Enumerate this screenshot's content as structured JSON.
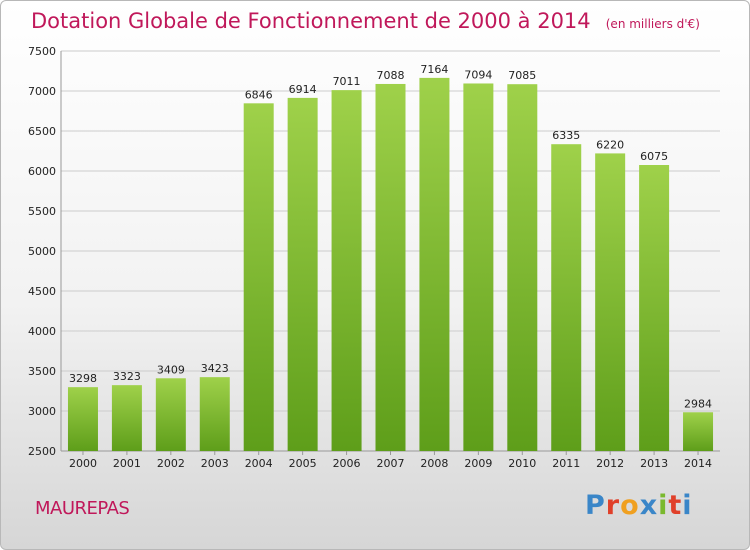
{
  "header": {
    "title": "Dotation Globale de Fonctionnement de 2000 à 2014",
    "unit": "(en milliers d'€)"
  },
  "footer": {
    "commune": "MAUREPAS",
    "brand": "Proxiti",
    "brand_letters": [
      "P",
      "r",
      "o",
      "x",
      "i",
      "t",
      "i"
    ],
    "brand_colors": [
      "#3a86c8",
      "#e0402a",
      "#f0a020",
      "#3a86c8",
      "#7ab92e",
      "#e0402a",
      "#3a86c8"
    ]
  },
  "colors": {
    "bar_light": "#9fd14a",
    "bar_dark": "#5e9e1a",
    "grid": "#cccccc",
    "title": "#c0185a"
  },
  "chart_data": {
    "type": "bar",
    "title": "Dotation Globale de Fonctionnement de 2000 à 2014",
    "subtitle": "(en milliers d'€)",
    "categories": [
      "2000",
      "2001",
      "2002",
      "2003",
      "2004",
      "2005",
      "2006",
      "2007",
      "2008",
      "2009",
      "2010",
      "2011",
      "2012",
      "2013",
      "2014"
    ],
    "values": [
      3298,
      3323,
      3409,
      3423,
      6846,
      6914,
      7011,
      7088,
      7164,
      7094,
      7085,
      6335,
      6220,
      6075,
      2984
    ],
    "ylim": [
      2500,
      7500
    ],
    "yticks": [
      2500,
      3000,
      3500,
      4000,
      4500,
      5000,
      5500,
      6000,
      6500,
      7000,
      7500
    ],
    "grid": true,
    "xlabel": "",
    "ylabel": ""
  }
}
